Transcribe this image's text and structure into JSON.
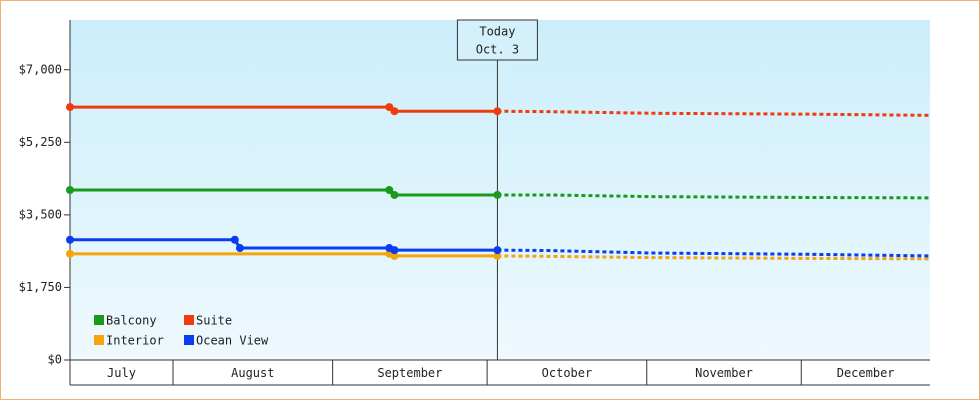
{
  "chart_data": {
    "type": "line",
    "today": {
      "x": 94,
      "label": [
        "Today",
        "Oct. 3"
      ]
    },
    "xlim": [
      11,
      178
    ],
    "xticks": [
      {
        "value": 0,
        "label": "July"
      },
      {
        "value": 31,
        "label": "August"
      },
      {
        "value": 62,
        "label": "September"
      },
      {
        "value": 92,
        "label": "October"
      },
      {
        "value": 123,
        "label": "November"
      },
      {
        "value": 153,
        "label": "December"
      }
    ],
    "ylim": [
      0,
      8200
    ],
    "yticks": [
      {
        "value": 0,
        "label": "$0"
      },
      {
        "value": 1750,
        "label": "$1,750"
      },
      {
        "value": 3500,
        "label": "$3,500"
      },
      {
        "value": 5250,
        "label": "$5,250"
      },
      {
        "value": 7000,
        "label": "$7,000"
      }
    ],
    "series": [
      {
        "name": "Balcony",
        "color": "#1a9a1a",
        "x": [
          11,
          73,
          74,
          94,
          104,
          124,
          154,
          178
        ],
        "values": [
          4100,
          4100,
          3980,
          3980,
          3980,
          3940,
          3920,
          3910
        ]
      },
      {
        "name": "Suite",
        "color": "#f03c0c",
        "x": [
          11,
          73,
          74,
          94,
          104,
          124,
          154,
          178
        ],
        "values": [
          6100,
          6100,
          6000,
          6000,
          5990,
          5950,
          5930,
          5900
        ]
      },
      {
        "name": "Interior",
        "color": "#f5a40a",
        "x": [
          11,
          73,
          74,
          94,
          104,
          124,
          154,
          178
        ],
        "values": [
          2560,
          2560,
          2510,
          2510,
          2500,
          2470,
          2450,
          2440
        ]
      },
      {
        "name": "Ocean View",
        "color": "#0a3cf0",
        "x": [
          11,
          43,
          44,
          73,
          74,
          94,
          104,
          124,
          154,
          178
        ],
        "values": [
          2900,
          2900,
          2700,
          2700,
          2650,
          2650,
          2640,
          2580,
          2550,
          2510
        ]
      }
    ]
  }
}
